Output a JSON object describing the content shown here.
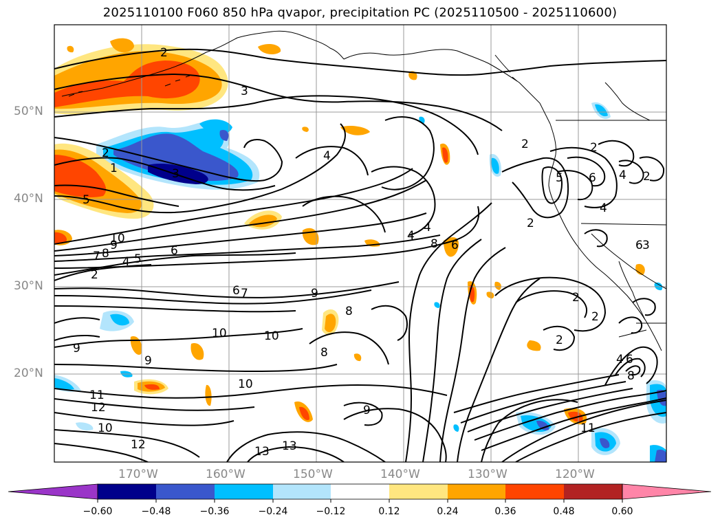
{
  "title": "2025110100 F060 850 hPa qvapor, precipitation PC (2025110500 - 2025110600)",
  "latitude_labels": [
    "50°N",
    "40°N",
    "30°N",
    "20°N"
  ],
  "longitude_labels": [
    "170°W",
    "160°W",
    "150°W",
    "140°W",
    "130°W",
    "120°W"
  ],
  "contour_labels": [
    "2",
    "3",
    "4",
    "2",
    "1",
    "3",
    "5",
    "10",
    "9",
    "8",
    "7",
    "6",
    "4",
    "5",
    "2",
    "6",
    "7",
    "9",
    "8",
    "10",
    "10",
    "8",
    "9",
    "9",
    "10",
    "11",
    "12",
    "10",
    "12",
    "13",
    "13",
    "9",
    "4",
    "4",
    "8",
    "6",
    "2",
    "5",
    "6",
    "4",
    "2",
    "2",
    "2",
    "4",
    "6",
    "2",
    "3",
    "2",
    "2",
    "4",
    "6",
    "8",
    "11"
  ],
  "colorbar": {
    "ticks": [
      "−0.60",
      "−0.48",
      "−0.36",
      "−0.24",
      "−0.12",
      "0.12",
      "0.24",
      "0.36",
      "0.48",
      "0.60"
    ],
    "colors": [
      "#9a35c8",
      "#00008b",
      "#3a57cc",
      "#00bfff",
      "#b3e5fc",
      "#ffffff",
      "#ffe680",
      "#ffa500",
      "#ff4500",
      "#b22222",
      "#ff85a8"
    ]
  },
  "colors": {
    "positive_light": "#ffe680",
    "positive_mid": "#ffa500",
    "positive_strong": "#ff4500",
    "negative_light": "#b3e5fc",
    "negative_mid": "#00bfff",
    "negative_strong": "#3a57cc",
    "negative_max": "#00008b",
    "contour": "#000000",
    "grid": "#999999"
  }
}
